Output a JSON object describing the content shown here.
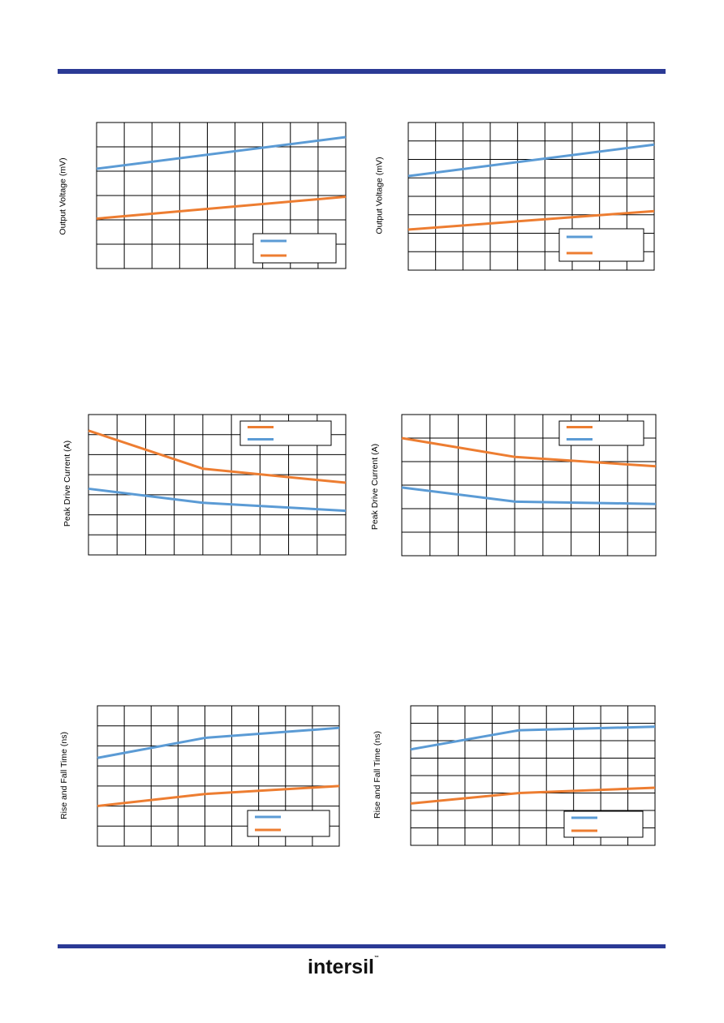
{
  "page": {
    "logo_text": "intersil",
    "colors": {
      "rule": "#2b3a95",
      "blue": "#5b9bd5",
      "orange": "#ed7d31",
      "grid": "#000000"
    }
  },
  "chart_data": [
    {
      "type": "line",
      "ylabel": "Output Voltage (mV)",
      "xlim": [
        0,
        9
      ],
      "ylim": [
        0,
        6
      ],
      "x": [
        0,
        9
      ],
      "grid": true,
      "legend_position": "bottom-right",
      "series": [
        {
          "color": "#5b9bd5",
          "values": [
            4.1,
            5.4
          ]
        },
        {
          "color": "#ed7d31",
          "values": [
            2.05,
            2.95
          ]
        }
      ]
    },
    {
      "type": "line",
      "ylabel": "Output Voltage (mV)",
      "xlim": [
        0,
        9
      ],
      "ylim": [
        0,
        8
      ],
      "x": [
        0,
        9
      ],
      "grid": true,
      "legend_position": "bottom-right",
      "series": [
        {
          "color": "#5b9bd5",
          "values": [
            5.1,
            6.8
          ]
        },
        {
          "color": "#ed7d31",
          "values": [
            2.2,
            3.2
          ]
        }
      ]
    },
    {
      "type": "line",
      "ylabel": "Peak Drive Current (A)",
      "xlim": [
        0,
        9
      ],
      "ylim": [
        0,
        7
      ],
      "x": [
        0,
        4,
        9
      ],
      "grid": true,
      "legend_position": "top-right",
      "series": [
        {
          "color": "#ed7d31",
          "values": [
            6.2,
            4.3,
            3.6
          ]
        },
        {
          "color": "#5b9bd5",
          "values": [
            3.3,
            2.6,
            2.2
          ]
        }
      ]
    },
    {
      "type": "line",
      "ylabel": "Peak Drive Current (A)",
      "xlim": [
        0,
        9
      ],
      "ylim": [
        0,
        6
      ],
      "x": [
        0,
        4,
        9
      ],
      "grid": true,
      "legend_position": "top-right",
      "series": [
        {
          "color": "#ed7d31",
          "values": [
            5.0,
            4.2,
            3.8
          ]
        },
        {
          "color": "#5b9bd5",
          "values": [
            2.9,
            2.3,
            2.2
          ]
        }
      ]
    },
    {
      "type": "line",
      "ylabel": "Rise and Fall Time (ns)",
      "xlim": [
        0,
        9
      ],
      "ylim": [
        0,
        7
      ],
      "x": [
        0,
        4,
        9
      ],
      "grid": true,
      "legend_position": "bottom-right",
      "series": [
        {
          "color": "#5b9bd5",
          "values": [
            4.4,
            5.4,
            5.9
          ]
        },
        {
          "color": "#ed7d31",
          "values": [
            2.0,
            2.6,
            3.0
          ]
        }
      ]
    },
    {
      "type": "line",
      "ylabel": "Rise and Fall Time (ns)",
      "xlim": [
        0,
        9
      ],
      "ylim": [
        0,
        8
      ],
      "x": [
        0,
        4,
        9
      ],
      "grid": true,
      "legend_position": "bottom-right",
      "series": [
        {
          "color": "#5b9bd5",
          "values": [
            5.5,
            6.6,
            6.8
          ]
        },
        {
          "color": "#ed7d31",
          "values": [
            2.4,
            3.0,
            3.3
          ]
        }
      ]
    }
  ]
}
